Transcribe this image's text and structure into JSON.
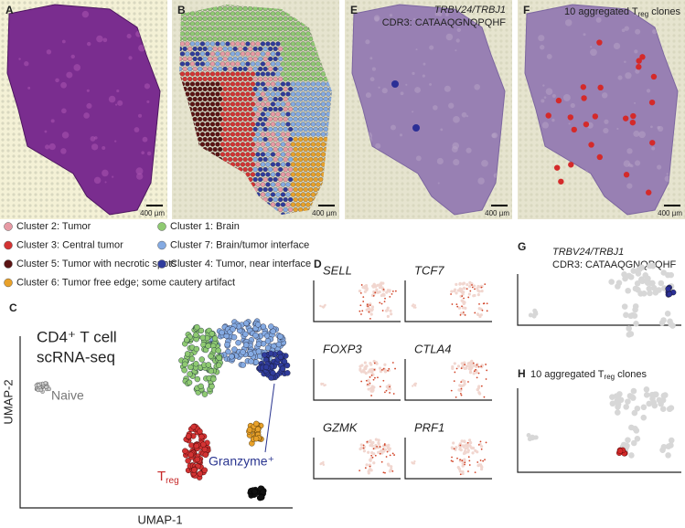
{
  "panels": {
    "a": "A",
    "b": "B",
    "c": "C",
    "d": "D",
    "e": "E",
    "f": "F",
    "g": "G",
    "h": "H"
  },
  "scale_bars": [
    "400 µm",
    "400 µm",
    "400 µm",
    "400 µm"
  ],
  "legend": [
    {
      "label": "Cluster 2: Tumor",
      "color": "#e79aa5"
    },
    {
      "label": "Cluster 3: Central tumor",
      "color": "#d33333"
    },
    {
      "label": "Cluster 5: Tumor with necrotic spots",
      "color": "#5b1414"
    },
    {
      "label": "Cluster 6: Tumor free edge; some cautery artifact",
      "color": "#e8a12a"
    },
    {
      "label": "Cluster 1: Brain",
      "color": "#8fca72"
    },
    {
      "label": "Cluster 7: Brain/tumor interface",
      "color": "#84aae2"
    },
    {
      "label": "Cluster 4: Tumor, near interface",
      "color": "#303c9c"
    }
  ],
  "panel_e": {
    "gene": "TRBV24/TRBJ1",
    "cdr3": "CDR3: CATAAQGNQPQHF"
  },
  "panel_f": {
    "pre": "10 aggregated T",
    "sub": "reg",
    "post": " clones"
  },
  "panel_c": {
    "line1": "CD4⁺ T cell",
    "line2": "scRNA-seq",
    "naive": "Naive",
    "treg_t": "T",
    "treg_sub": "reg",
    "granzyme": "Granzyme⁺",
    "y_axis": "UMAP-2",
    "x_axis": "UMAP-1"
  },
  "panel_d": [
    "SELL",
    "TCF7",
    "FOXP3",
    "CTLA4",
    "GZMK",
    "PRF1"
  ],
  "panel_g": {
    "gene": "TRBV24/TRBJ1",
    "cdr3": "CDR3: CATAAQGNQPQHF"
  },
  "panel_h": {
    "pre": "10 aggregated T",
    "sub": "reg",
    "post": " clones"
  }
}
